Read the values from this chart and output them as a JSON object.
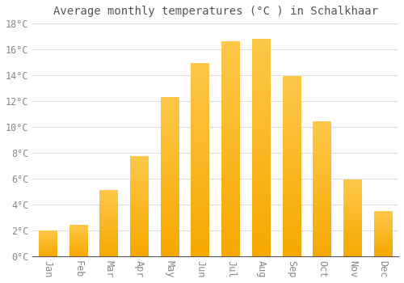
{
  "title": "Average monthly temperatures (°C ) in Schalkhaar",
  "months": [
    "Jan",
    "Feb",
    "Mar",
    "Apr",
    "May",
    "Jun",
    "Jul",
    "Aug",
    "Sep",
    "Oct",
    "Nov",
    "Dec"
  ],
  "values": [
    2.0,
    2.4,
    5.1,
    7.7,
    12.3,
    14.9,
    16.6,
    16.8,
    13.9,
    10.4,
    5.9,
    3.5
  ],
  "bar_color_light": "#FFC84A",
  "bar_color_dark": "#F5A800",
  "background_color": "#ffffff",
  "grid_color": "#dddddd",
  "text_color": "#888888",
  "ylim": [
    0,
    18
  ],
  "ytick_step": 2,
  "title_fontsize": 10,
  "tick_fontsize": 8.5,
  "figsize": [
    5.0,
    3.5
  ],
  "dpi": 100,
  "bar_width": 0.6
}
